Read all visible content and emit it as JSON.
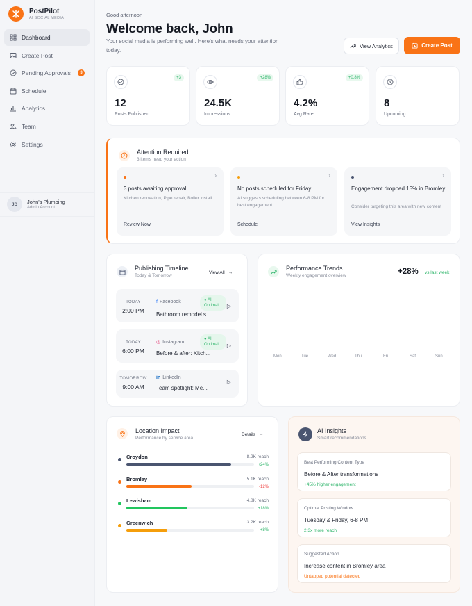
{
  "brand": {
    "name": "PostPilot",
    "tagline": "AI SOCIAL MEDIA"
  },
  "sidebar": {
    "items": [
      {
        "label": "Dashboard",
        "icon": "grid-icon",
        "active": true
      },
      {
        "label": "Create Post",
        "icon": "image-icon"
      },
      {
        "label": "Pending Approvals",
        "icon": "check-circle-icon",
        "badge": "3"
      },
      {
        "label": "Schedule",
        "icon": "calendar-icon"
      },
      {
        "label": "Analytics",
        "icon": "bar-chart-icon"
      },
      {
        "label": "Team",
        "icon": "users-icon"
      },
      {
        "label": "Settings",
        "icon": "gear-icon"
      }
    ],
    "account": {
      "initials": "JD",
      "name": "John's Plumbing",
      "role": "Admin Account"
    }
  },
  "header": {
    "greeting": "Good afternoon",
    "title": "Welcome back, John",
    "subtitle": "Your social media is performing well. Here's what needs your attention today.",
    "view_analytics": "View Analytics",
    "create_post": "Create Post"
  },
  "stats": [
    {
      "value": "12",
      "label": "Posts Published",
      "change": "+3",
      "icon": "check-circle-icon"
    },
    {
      "value": "24.5K",
      "label": "Impressions",
      "change": "+28%",
      "icon": "eye-icon"
    },
    {
      "value": "4.2%",
      "label": "Avg Rate",
      "change": "+0.8%",
      "icon": "thumbs-up-icon"
    },
    {
      "value": "8",
      "label": "Upcoming",
      "change": "",
      "icon": "clock-icon"
    }
  ],
  "attention": {
    "title": "Attention Required",
    "subtitle": "3 items need your action",
    "items": [
      {
        "title": "3 posts awaiting approval",
        "desc": "Kitchen renovation, Pipe repair, Boiler install",
        "action": "Review Now",
        "dot": "#f97316"
      },
      {
        "title": "No posts scheduled for Friday",
        "desc": "AI suggests scheduling between 6-8 PM for best engagement",
        "action": "Schedule",
        "dot": "#f59e0b"
      },
      {
        "title": "Engagement dropped 15% in Bromley",
        "desc": "Consider targeting this area with new content",
        "action": "View Insights",
        "dot": "#4a5570"
      }
    ]
  },
  "timeline": {
    "title": "Publishing Timeline",
    "subtitle": "Today & Tomorrow",
    "view_all": "View All",
    "items": [
      {
        "day": "TODAY",
        "time": "2:00 PM",
        "platform": "Facebook",
        "tag": "AI Optimal",
        "title": "Bathroom remodel s..."
      },
      {
        "day": "TODAY",
        "time": "6:00 PM",
        "platform": "Instagram",
        "tag": "AI Optimal",
        "title": "Before & after: Kitch..."
      },
      {
        "day": "TOMORROW",
        "time": "9:00 AM",
        "platform": "LinkedIn",
        "tag": "",
        "title": "Team spotlight: Me..."
      }
    ]
  },
  "performance": {
    "title": "Performance Trends",
    "subtitle": "Weekly engagement overview",
    "value": "+28%",
    "compare": "vs last week",
    "days": [
      "Mon",
      "Tue",
      "Wed",
      "Thu",
      "Fri",
      "Sat",
      "Sun"
    ]
  },
  "locations": {
    "title": "Location Impact",
    "subtitle": "Performance by service area",
    "details": "Details",
    "items": [
      {
        "name": "Croydon",
        "reach": "8.2K reach",
        "change": "+24%",
        "level": 0.82,
        "color": "#4a5570",
        "change_color": "#2fb56b"
      },
      {
        "name": "Bromley",
        "reach": "5.1K reach",
        "change": "-12%",
        "level": 0.51,
        "color": "#f97316",
        "change_color": "#ef4444"
      },
      {
        "name": "Lewisham",
        "reach": "4.8K reach",
        "change": "+18%",
        "level": 0.48,
        "color": "#22c55e",
        "change_color": "#2fb56b"
      },
      {
        "name": "Greenwich",
        "reach": "3.2K reach",
        "change": "+8%",
        "level": 0.32,
        "color": "#f59e0b",
        "change_color": "#2fb56b"
      }
    ]
  },
  "ai": {
    "title": "AI Insights",
    "subtitle": "Smart recommendations",
    "items": [
      {
        "key": "Best Performing Content Type",
        "value": "Before & After transformations",
        "note": "+45% higher engagement",
        "note_color": "#2fb56b"
      },
      {
        "key": "Optimal Posting Window",
        "value": "Tuesday & Friday, 6-8 PM",
        "note": "2.3x more reach",
        "note_color": "#2fb56b"
      },
      {
        "key": "Suggested Action",
        "value": "Increase content in Bromley area",
        "note": "Untapped potential detected",
        "note_color": "#f97316"
      }
    ]
  }
}
